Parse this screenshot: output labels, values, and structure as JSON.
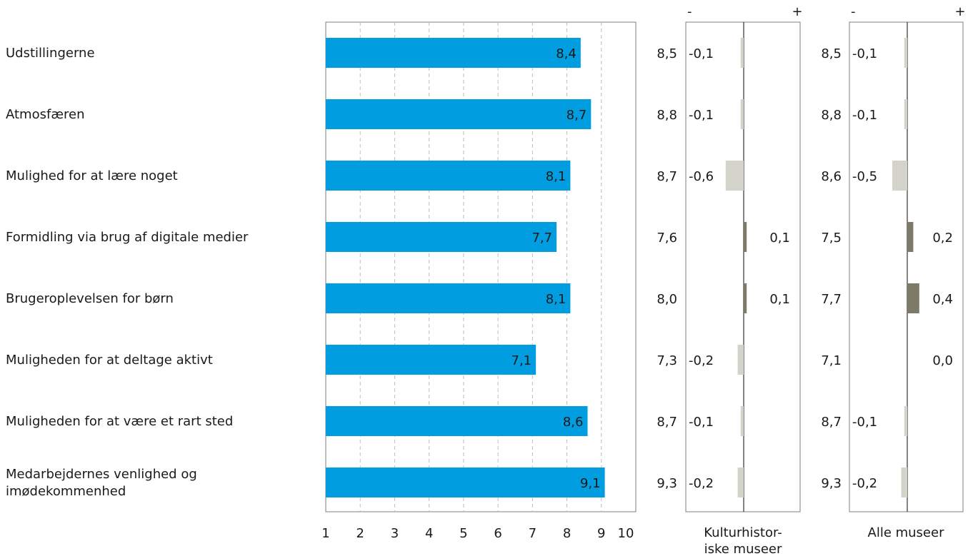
{
  "chart_data": {
    "type": "bar",
    "orientation": "horizontal",
    "categories": [
      [
        "Udstillingerne"
      ],
      [
        "Atmosfæren"
      ],
      [
        "Mulighed for at lære noget"
      ],
      [
        "Formidling via brug af digitale medier"
      ],
      [
        "Brugeroplevelsen for børn"
      ],
      [
        "Muligheden for at deltage aktivt"
      ],
      [
        "Muligheden for at være et rart sted"
      ],
      [
        "Medarbejdernes venlighed og",
        "imødekommenhed"
      ]
    ],
    "values": [
      8.4,
      8.7,
      8.1,
      7.7,
      8.1,
      7.1,
      8.6,
      9.1
    ],
    "value_labels": [
      "8,4",
      "8,7",
      "8,1",
      "7,7",
      "8,1",
      "7,1",
      "8,6",
      "9,1"
    ],
    "xlim": [
      1,
      10
    ],
    "x_ticks": [
      "1",
      "2",
      "3",
      "4",
      "5",
      "6",
      "7",
      "8",
      "9",
      "10"
    ],
    "grid": "vertical dashed",
    "bar_color": "#009ee0",
    "comparisons": [
      {
        "label_lines": [
          "Kulturhistor-",
          "iske museer"
        ],
        "minus_label": "-",
        "plus_label": "+",
        "benchmark_labels": [
          "8,5",
          "8,8",
          "8,7",
          "7,6",
          "8,0",
          "7,3",
          "8,7",
          "9,3"
        ],
        "differences": [
          -0.1,
          -0.1,
          -0.6,
          0.1,
          0.1,
          -0.2,
          -0.1,
          -0.2
        ],
        "difference_labels": [
          "-0,1",
          "-0,1",
          "-0,6",
          "0,1",
          "0,1",
          "-0,2",
          "-0,1",
          "-0,2"
        ]
      },
      {
        "label_lines": [
          "Alle museer"
        ],
        "minus_label": "-",
        "plus_label": "+",
        "benchmark_labels": [
          "8,5",
          "8,8",
          "8,6",
          "7,5",
          "7,7",
          "7,1",
          "8,7",
          "9,3"
        ],
        "differences": [
          -0.1,
          -0.1,
          -0.5,
          0.2,
          0.4,
          0.0,
          -0.1,
          -0.2
        ],
        "difference_labels": [
          "-0,1",
          "-0,1",
          "-0,5",
          "0,2",
          "0,4",
          "0,0",
          "-0,1",
          "-0,2"
        ]
      }
    ],
    "negative_color": "#d4d3c9",
    "positive_color": "#7d7a6a"
  }
}
